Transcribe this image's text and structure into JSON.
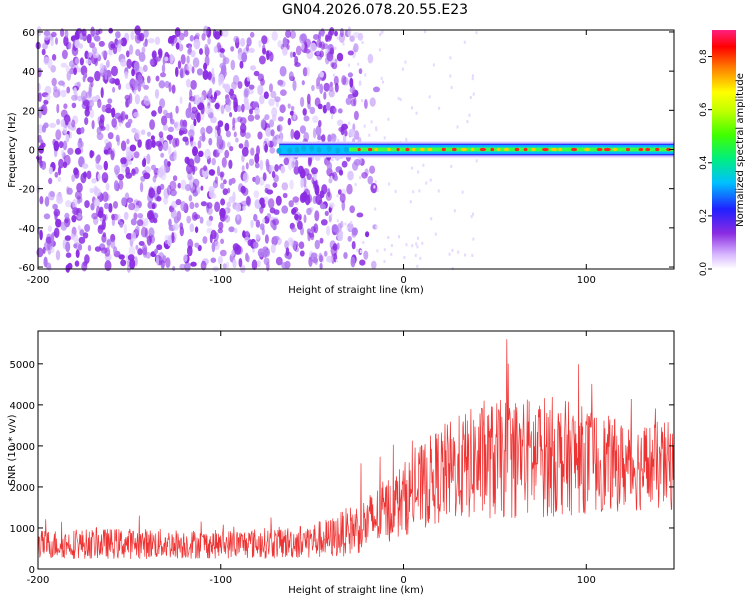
{
  "chart_data": [
    {
      "type": "heatmap",
      "title": "GN04.2026.078.20.55.E23",
      "xlabel": "Height of straight line (km)",
      "ylabel": "Frequency (Hz)",
      "xlim": [
        -200,
        148
      ],
      "ylim": [
        -61,
        61
      ],
      "xticks": [
        -200,
        -100,
        0,
        100
      ],
      "yticks": [
        60,
        40,
        20,
        0,
        -20,
        -40,
        -60
      ],
      "description_of_data": {
        "noise_region_x": [
          -200,
          -35
        ],
        "signal_start_x": -68,
        "signal_frequency": 0,
        "signal_halfwidth_hz": 3
      },
      "colorbar": {
        "label": "Normalized spectral amplitude",
        "range": [
          0.0,
          0.9
        ],
        "ticks": [
          0.0,
          0.2,
          0.4,
          0.6,
          0.8
        ],
        "tick_labels": [
          "0.0",
          "0.2",
          "0.4",
          "0.6",
          "0.8"
        ]
      }
    },
    {
      "type": "line",
      "xlabel": "Height of straight line (km)",
      "ylabel": "SNR (10 * v/v)",
      "xlim": [
        -200,
        148
      ],
      "ylim": [
        0,
        5800
      ],
      "xticks": [
        -200,
        -100,
        0,
        100
      ],
      "yticks": [
        0,
        1000,
        2000,
        3000,
        4000,
        5000
      ],
      "color": "#ee3333",
      "envelope": {
        "x": [
          -200,
          -150,
          -100,
          -60,
          -40,
          -20,
          0,
          20,
          40,
          60,
          80,
          100,
          120,
          148
        ],
        "mean": [
          600,
          620,
          600,
          650,
          750,
          1100,
          1700,
          2300,
          2600,
          2700,
          2750,
          2650,
          2500,
          2500
        ],
        "spread": [
          350,
          380,
          350,
          400,
          500,
          700,
          900,
          1200,
          1400,
          1500,
          1500,
          1300,
          1100,
          1100
        ]
      }
    }
  ]
}
